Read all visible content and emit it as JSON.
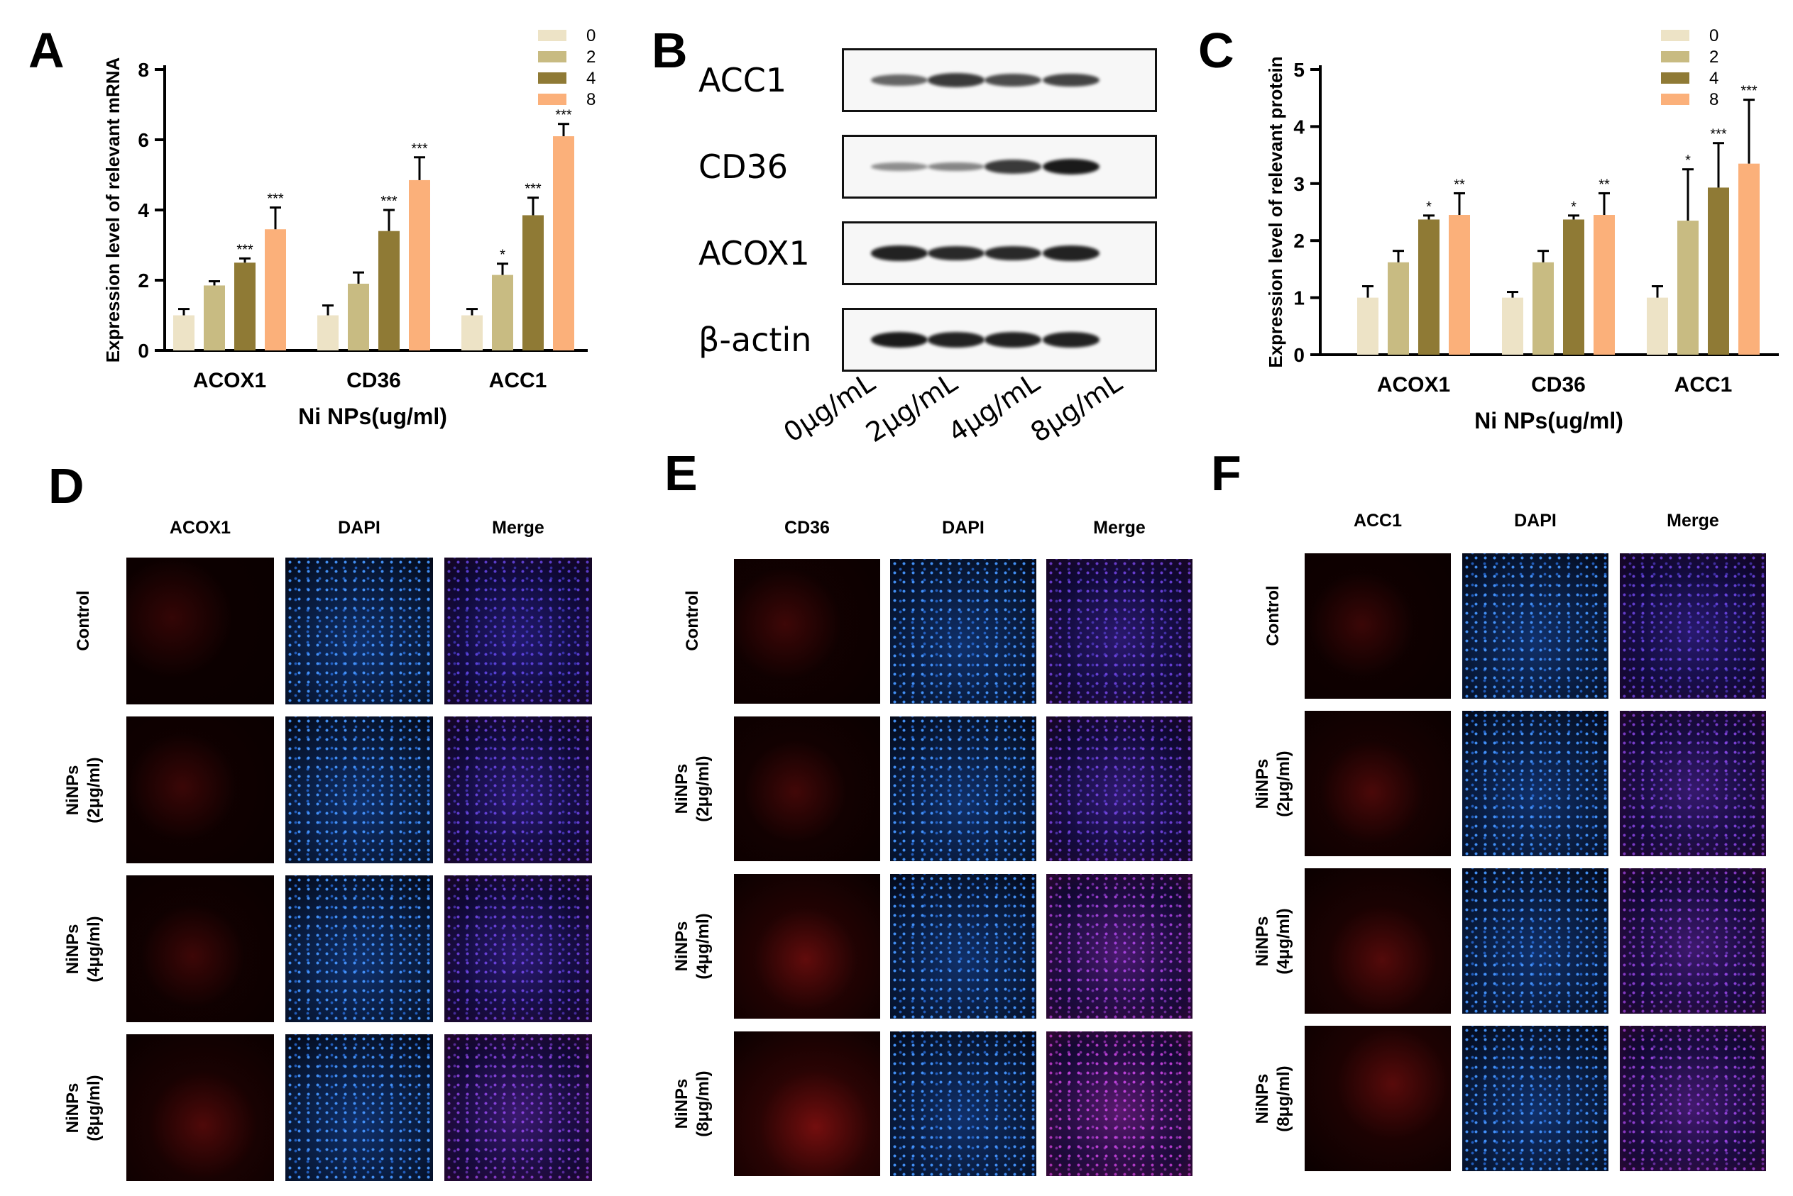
{
  "panels": {
    "A": "A",
    "B": "B",
    "C": "C",
    "D": "D",
    "E": "E",
    "F": "F"
  },
  "chart_data": [
    {
      "type": "bar",
      "panel": "A",
      "categories": [
        "ACOX1",
        "CD36",
        "ACC1"
      ],
      "series": [
        {
          "name": "0",
          "color": "#ede3c6",
          "values": [
            1.0,
            1.0,
            1.0
          ],
          "errors": [
            0.18,
            0.28,
            0.18
          ],
          "sig": [
            "",
            "",
            ""
          ]
        },
        {
          "name": "2",
          "color": "#c8bb82",
          "values": [
            1.85,
            1.9,
            2.15
          ],
          "errors": [
            0.12,
            0.32,
            0.32
          ],
          "sig": [
            "",
            "",
            "*"
          ]
        },
        {
          "name": "4",
          "color": "#8f7a35",
          "values": [
            2.5,
            3.4,
            3.85
          ],
          "errors": [
            0.12,
            0.6,
            0.5
          ],
          "sig": [
            "***",
            "***",
            "***"
          ]
        },
        {
          "name": "8",
          "color": "#fbb07a",
          "values": [
            3.45,
            4.85,
            6.1
          ],
          "errors": [
            0.62,
            0.65,
            0.35
          ],
          "sig": [
            "***",
            "***",
            "***"
          ]
        }
      ],
      "xlabel": "Ni NPs(ug/ml)",
      "ylabel": "Expression level of relevant mRNA",
      "ylim": [
        0,
        8
      ],
      "yticks": [
        "0",
        "2",
        "4",
        "6",
        "8"
      ],
      "legend_position": "top-right"
    },
    {
      "type": "bar",
      "panel": "C",
      "categories": [
        "ACOX1",
        "CD36",
        "ACC1"
      ],
      "series": [
        {
          "name": "0",
          "color": "#ede3c6",
          "values": [
            1.0,
            1.0,
            1.0
          ],
          "errors": [
            0.2,
            0.1,
            0.2
          ],
          "sig": [
            "",
            "",
            ""
          ]
        },
        {
          "name": "2",
          "color": "#c8bb82",
          "values": [
            1.62,
            1.62,
            2.35
          ],
          "errors": [
            0.2,
            0.2,
            0.9
          ],
          "sig": [
            "",
            "",
            "*"
          ]
        },
        {
          "name": "4",
          "color": "#8f7a35",
          "values": [
            2.37,
            2.37,
            2.93
          ],
          "errors": [
            0.07,
            0.07,
            0.78
          ],
          "sig": [
            "*",
            "*",
            "***"
          ]
        },
        {
          "name": "8",
          "color": "#fbb07a",
          "values": [
            2.45,
            2.45,
            3.35
          ],
          "errors": [
            0.38,
            0.38,
            1.12
          ],
          "sig": [
            "**",
            "**",
            "***"
          ]
        }
      ],
      "xlabel": "Ni NPs(ug/ml)",
      "ylabel": "Expression level of relevant protein",
      "ylim": [
        0,
        5
      ],
      "yticks": [
        "0",
        "1",
        "2",
        "3",
        "4",
        "5"
      ],
      "legend_position": "top-right"
    }
  ],
  "western_blot": {
    "labels": [
      "ACC1",
      "CD36",
      "ACOX1",
      "β-actin"
    ],
    "concentrations": [
      "0μg/mL",
      "2μg/mL",
      "4μg/mL",
      "8μg/mL"
    ],
    "band_intensity": [
      [
        0.55,
        0.8,
        0.7,
        0.75
      ],
      [
        0.3,
        0.35,
        0.8,
        1.0
      ],
      [
        0.95,
        0.9,
        0.9,
        0.95
      ],
      [
        1.0,
        0.95,
        0.95,
        0.95
      ]
    ]
  },
  "immunofluorescence": [
    {
      "panel": "D",
      "columns": [
        "ACOX1",
        "DAPI",
        "Merge"
      ],
      "rows": [
        [
          "Control"
        ],
        [
          "NiNPs",
          "(2μg/ml)"
        ],
        [
          "NiNPs",
          "(4μg/ml)"
        ],
        [
          "NiNPs",
          "(8μg/ml)"
        ]
      ],
      "red_level": [
        0.05,
        0.12,
        0.15,
        0.35
      ]
    },
    {
      "panel": "E",
      "columns": [
        "CD36",
        "DAPI",
        "Merge"
      ],
      "rows": [
        [
          "Control"
        ],
        [
          "NiNPs",
          "(2μg/ml)"
        ],
        [
          "NiNPs",
          "(4μg/ml)"
        ],
        [
          "NiNPs",
          "(8μg/ml)"
        ]
      ],
      "red_level": [
        0.15,
        0.2,
        0.55,
        0.75
      ]
    },
    {
      "panel": "F",
      "columns": [
        "ACC1",
        "DAPI",
        "Merge"
      ],
      "rows": [
        [
          "Control"
        ],
        [
          "NiNPs",
          "(2μg/ml)"
        ],
        [
          "NiNPs",
          "(4μg/ml)"
        ],
        [
          "NiNPs",
          "(8μg/ml)"
        ]
      ],
      "red_level": [
        0.12,
        0.3,
        0.4,
        0.45
      ]
    }
  ]
}
